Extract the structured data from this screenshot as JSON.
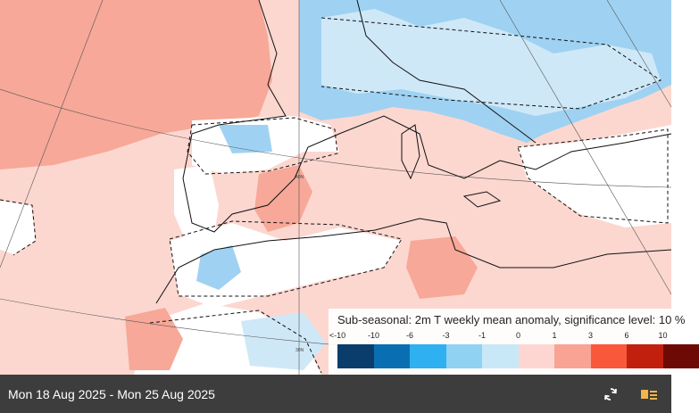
{
  "footer": {
    "date_range": "Mon 18 Aug 2025 - Mon 25 Aug 2025"
  },
  "legend": {
    "title": "Sub-seasonal: 2m T weekly mean anomaly, significance level: 10 %",
    "ticks": [
      "<-10",
      "-10",
      "-6",
      "-3",
      "-1",
      "0",
      "1",
      "3",
      "6",
      "10"
    ],
    "colors": [
      "#0a3d6b",
      "#0a6fb2",
      "#2fb0f0",
      "#90d2f2",
      "#c9e8f7",
      "#fdd6d2",
      "#f9a394",
      "#f9583a",
      "#c2200f",
      "#6e0a05"
    ]
  },
  "map": {
    "grid_labels": [
      "40N",
      "30N"
    ],
    "colors": {
      "warm_light": "#fcd7d0",
      "warm": "#f7a898",
      "cool_light": "#cfe8f8",
      "cool": "#9fd2f2",
      "neutral": "#ffffff"
    }
  },
  "icons": {
    "refresh": "refresh-icon",
    "layers": "layers-icon"
  }
}
